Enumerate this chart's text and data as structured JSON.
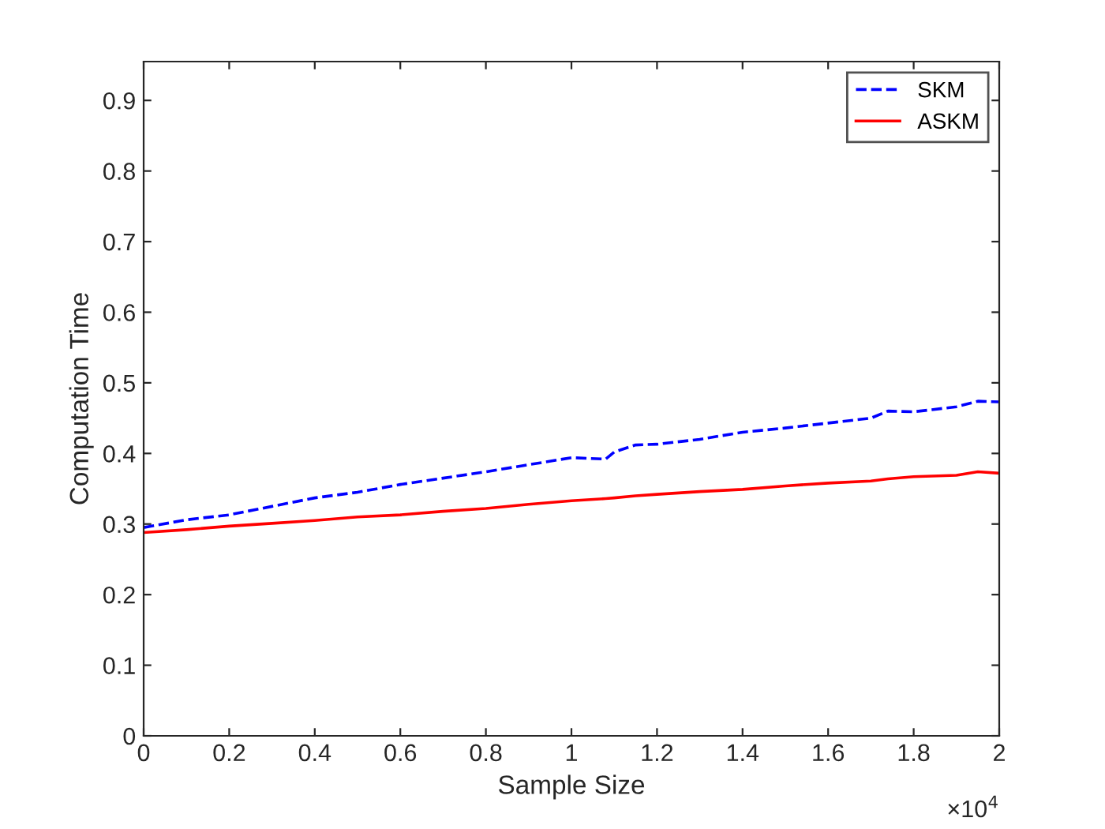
{
  "chart_data": {
    "type": "line",
    "xlabel": "Sample Size",
    "ylabel": "Computation Time",
    "xlim": [
      0,
      2
    ],
    "ylim": [
      0,
      0.955
    ],
    "xticks": [
      0,
      0.2,
      0.4,
      0.6,
      0.8,
      1,
      1.2,
      1.4,
      1.6,
      1.8,
      2
    ],
    "yticks": [
      0,
      0.1,
      0.2,
      0.3,
      0.4,
      0.5,
      0.6,
      0.7,
      0.8,
      0.9
    ],
    "annotations": [
      "×10$^{4}$"
    ],
    "legend": "top right",
    "grid": false,
    "x": [
      0,
      0.1,
      0.2,
      0.3,
      0.4,
      0.5,
      0.6,
      0.7,
      0.8,
      0.9,
      1,
      1.08,
      1.1,
      1.15,
      1.2,
      1.3,
      1.4,
      1.5,
      1.6,
      1.7,
      1.74,
      1.8,
      1.9,
      1.95,
      2
    ],
    "series": [
      {
        "name": "SKM",
        "color": "#0000ff",
        "line_style": "dashed",
        "values": [
          0.295,
          0.306,
          0.313,
          0.325,
          0.337,
          0.345,
          0.356,
          0.365,
          0.374,
          0.384,
          0.394,
          0.392,
          0.402,
          0.412,
          0.413,
          0.42,
          0.43,
          0.436,
          0.443,
          0.45,
          0.46,
          0.459,
          0.466,
          0.474,
          0.473
        ]
      },
      {
        "name": "ASKM",
        "color": "#ff0000",
        "line_style": "solid",
        "values": [
          0.288,
          0.292,
          0.297,
          0.301,
          0.305,
          0.31,
          0.313,
          0.318,
          0.322,
          0.328,
          0.333,
          0.336,
          0.337,
          0.34,
          0.342,
          0.346,
          0.349,
          0.354,
          0.358,
          0.361,
          0.364,
          0.367,
          0.369,
          0.374,
          0.372
        ]
      }
    ]
  }
}
